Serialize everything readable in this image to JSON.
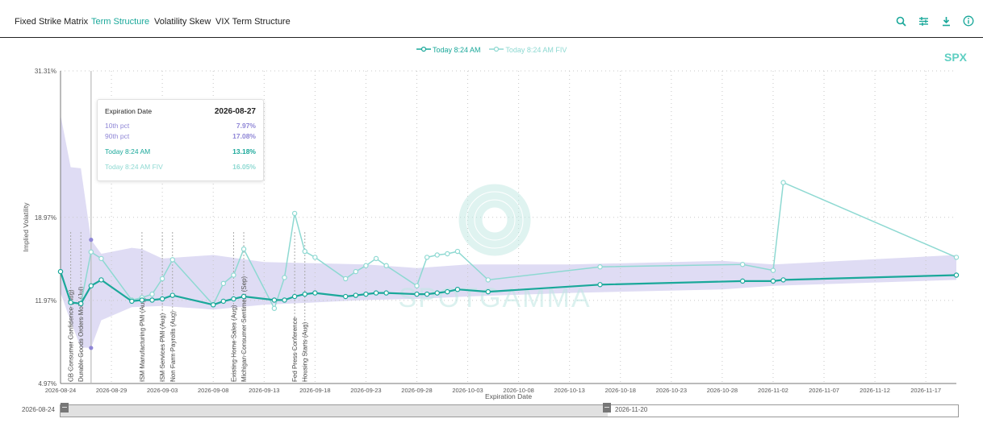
{
  "tabs": [
    {
      "label": "Fixed Strike Matrix"
    },
    {
      "label": "Term Structure"
    },
    {
      "label": "Volatility Skew"
    },
    {
      "label": "VIX Term Structure"
    }
  ],
  "active_tab": "Term Structure",
  "toolbar": {
    "icons": [
      "search-icon",
      "sliders-icon",
      "download-icon",
      "info-icon"
    ]
  },
  "ticker": "SPX",
  "watermark": "SPOTGAMMA",
  "tooltip": {
    "header_label": "Expiration Date",
    "header_value": "2026-08-27",
    "rows": [
      {
        "label": "10th pct",
        "value": "7.97%"
      },
      {
        "label": "90th pct",
        "value": "17.08%"
      },
      {
        "label": "Today 8:24 AM",
        "value": "13.18%"
      },
      {
        "label": "Today 8:24 AM FIV",
        "value": "16.05%"
      }
    ]
  },
  "navigator": {
    "start": "2026-08-24",
    "end": "2026-11-20"
  },
  "colors": {
    "today": "#1aa89a",
    "fiv": "#8ed9d2",
    "band": "#d9d6f2",
    "pct": "#8f86d6",
    "accent": "#1aa89a"
  },
  "chart_data": {
    "type": "line",
    "title": "",
    "xlabel": "Expiration Date",
    "ylabel": "Implied Volatility",
    "x_range": [
      "2026-08-24",
      "2026-11-20"
    ],
    "y_range": [
      4.97,
      31.31
    ],
    "y_ticks": [
      "4.97%",
      "11.97%",
      "18.97%",
      "31.31%"
    ],
    "x_ticks": [
      "2026-08-24",
      "2026-08-29",
      "2026-09-03",
      "2026-09-08",
      "2026-09-13",
      "2026-09-18",
      "2026-09-23",
      "2026-09-28",
      "2026-10-03",
      "2026-10-08",
      "2026-10-13",
      "2026-10-18",
      "2026-10-23",
      "2026-10-28",
      "2026-11-02",
      "2026-11-07",
      "2026-11-12",
      "2026-11-17"
    ],
    "grid": true,
    "legend": "top-center",
    "series": [
      {
        "name": "Today 8:24 AM",
        "x": [
          "2026-08-24",
          "2026-08-25",
          "2026-08-26",
          "2026-08-27",
          "2026-08-28",
          "2026-08-31",
          "2026-09-01",
          "2026-09-02",
          "2026-09-03",
          "2026-09-04",
          "2026-09-08",
          "2026-09-09",
          "2026-09-10",
          "2026-09-11",
          "2026-09-14",
          "2026-09-15",
          "2026-09-16",
          "2026-09-17",
          "2026-09-18",
          "2026-09-21",
          "2026-09-22",
          "2026-09-23",
          "2026-09-24",
          "2026-09-25",
          "2026-09-28",
          "2026-09-29",
          "2026-09-30",
          "2026-10-01",
          "2026-10-02",
          "2026-10-05",
          "2026-10-16",
          "2026-10-30",
          "2026-11-02",
          "2026-11-03",
          "2026-11-20"
        ],
        "values": [
          14.4,
          11.8,
          11.7,
          13.2,
          13.7,
          11.9,
          12.0,
          12.0,
          12.1,
          12.4,
          11.6,
          11.9,
          12.1,
          12.3,
          12.0,
          12.0,
          12.3,
          12.5,
          12.6,
          12.3,
          12.4,
          12.5,
          12.6,
          12.6,
          12.5,
          12.5,
          12.6,
          12.7,
          12.9,
          12.7,
          13.3,
          13.6,
          13.6,
          13.7,
          14.1
        ]
      },
      {
        "name": "Today 8:24 AM FIV",
        "x": [
          "2026-08-24",
          "2026-08-25",
          "2026-08-26",
          "2026-08-27",
          "2026-08-28",
          "2026-08-31",
          "2026-09-01",
          "2026-09-02",
          "2026-09-03",
          "2026-09-04",
          "2026-09-08",
          "2026-09-09",
          "2026-09-10",
          "2026-09-11",
          "2026-09-14",
          "2026-09-15",
          "2026-09-16",
          "2026-09-17",
          "2026-09-18",
          "2026-09-21",
          "2026-09-22",
          "2026-09-23",
          "2026-09-24",
          "2026-09-25",
          "2026-09-28",
          "2026-09-29",
          "2026-09-30",
          "2026-10-01",
          "2026-10-02",
          "2026-10-05",
          "2026-10-16",
          "2026-10-30",
          "2026-11-02",
          "2026-11-03",
          "2026-11-20"
        ],
        "values": [
          14.4,
          11.8,
          11.7,
          16.05,
          15.5,
          12.0,
          12.2,
          12.5,
          13.8,
          15.4,
          11.6,
          13.4,
          14.1,
          16.3,
          11.3,
          13.9,
          19.3,
          16.1,
          15.6,
          13.8,
          14.4,
          14.9,
          15.5,
          14.9,
          13.2,
          15.6,
          15.8,
          15.9,
          16.1,
          13.7,
          14.8,
          15.0,
          14.5,
          21.9,
          15.6
        ]
      },
      {
        "name": "10th pct",
        "x": [
          "2026-08-24",
          "2026-08-25",
          "2026-08-26",
          "2026-08-27",
          "2026-08-28",
          "2026-08-31",
          "2026-09-03",
          "2026-09-08",
          "2026-09-13",
          "2026-09-18",
          "2026-09-23",
          "2026-09-28",
          "2026-10-03",
          "2026-10-13",
          "2026-10-28",
          "2026-11-02",
          "2026-11-20"
        ],
        "values": [
          12.6,
          10.2,
          8.0,
          7.97,
          10.3,
          11.4,
          11.5,
          11.2,
          11.6,
          11.8,
          12.0,
          12.1,
          12.3,
          12.6,
          12.9,
          13.2,
          13.7
        ]
      },
      {
        "name": "90th pct",
        "x": [
          "2026-08-24",
          "2026-08-25",
          "2026-08-26",
          "2026-08-27",
          "2026-08-28",
          "2026-08-31",
          "2026-09-01",
          "2026-09-03",
          "2026-09-08",
          "2026-09-13",
          "2026-09-18",
          "2026-09-23",
          "2026-09-28",
          "2026-10-03",
          "2026-10-13",
          "2026-10-28",
          "2026-11-02",
          "2026-11-20"
        ],
        "values": [
          27.6,
          23.2,
          23.1,
          17.08,
          15.9,
          16.4,
          16.3,
          15.5,
          15.8,
          15.2,
          15.1,
          15.0,
          14.7,
          15.0,
          15.0,
          15.3,
          15.0,
          15.8
        ]
      }
    ],
    "events": [
      {
        "date": "2026-08-25",
        "label": "CB Consumer Confidence (Aug)"
      },
      {
        "date": "2026-08-26",
        "label": "Durable Goods Orders MoM (Jul)"
      },
      {
        "date": "2026-09-01",
        "label": "ISM Manufacturing PMI (Aug)"
      },
      {
        "date": "2026-09-03",
        "label": "ISM Services PMI (Aug)"
      },
      {
        "date": "2026-09-04",
        "label": "Non Farm Payrolls (Aug)"
      },
      {
        "date": "2026-09-10",
        "label": "Existing Home Sales (Aug)"
      },
      {
        "date": "2026-09-11",
        "label": "Michigan Consumer Sentiment (Sep)"
      },
      {
        "date": "2026-09-16",
        "label": "Fed Press Conference"
      },
      {
        "date": "2026-09-17",
        "label": "Housing Starts (Aug)"
      }
    ]
  }
}
